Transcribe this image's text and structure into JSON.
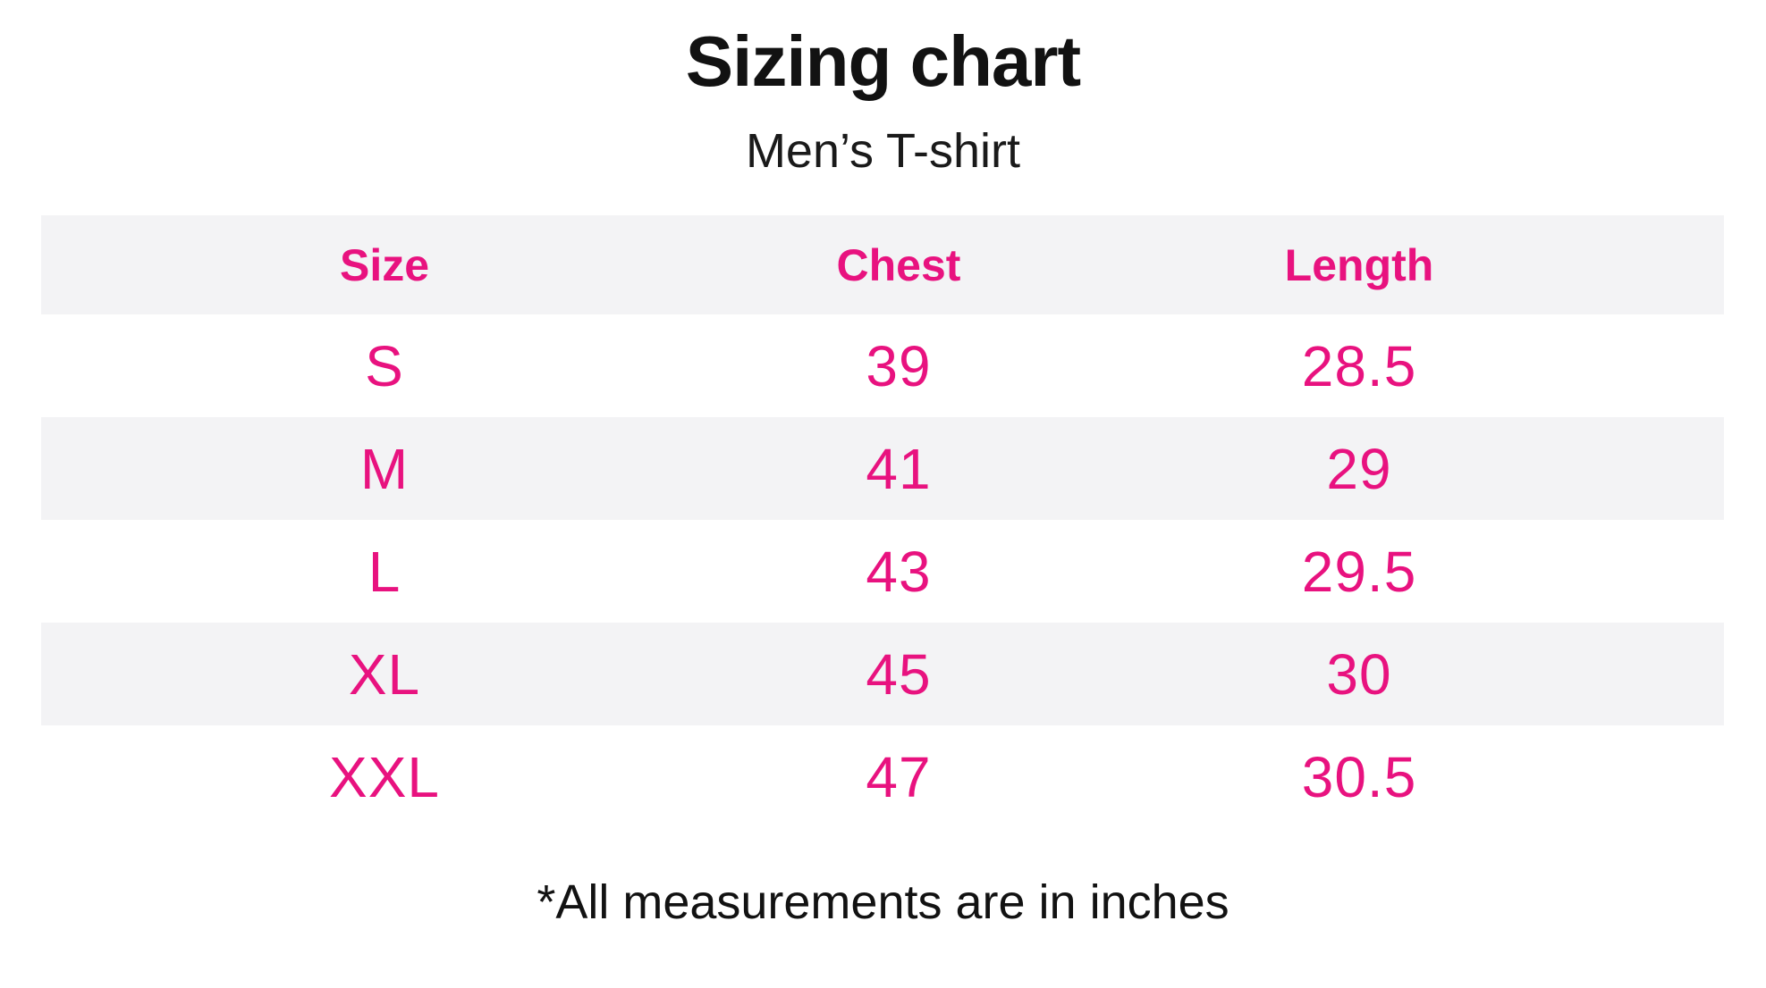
{
  "colors": {
    "accent_pink": "#E8127F",
    "row_stripe_gray": "#F3F3F5",
    "ink_black": "#121212"
  },
  "chart_data": {
    "type": "table",
    "title": "Sizing chart",
    "subtitle": "Men’s T-shirt",
    "columns": [
      "Size",
      "Chest",
      "Length"
    ],
    "rows": [
      [
        "S",
        39,
        28.5
      ],
      [
        "M",
        41,
        29
      ],
      [
        "L",
        43,
        29.5
      ],
      [
        "XL",
        45,
        30
      ],
      [
        "XXL",
        47,
        30.5
      ]
    ],
    "units": "inches",
    "footnote": "*All measurements are in inches",
    "layout_hints": {
      "header_row_shaded": true,
      "alternating_row_shading": [
        "none",
        "shaded",
        "none",
        "shaded",
        "none"
      ],
      "columns_aligned": "center"
    }
  }
}
